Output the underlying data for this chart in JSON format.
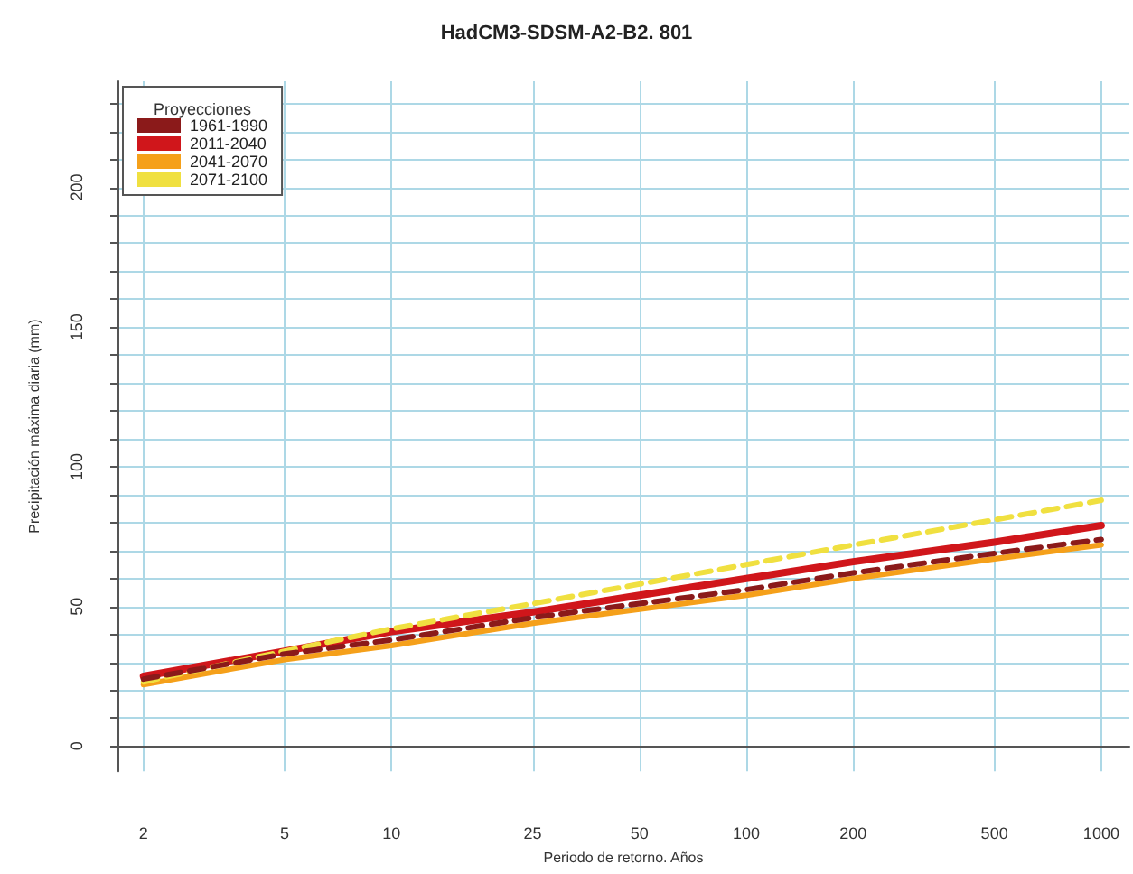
{
  "chart_data": {
    "type": "line",
    "title": "HadCM3-SDSM-A2-B2. 801",
    "xlabel": "Periodo de retorno. Años",
    "ylabel": "Precipitación máxima diaria (mm)",
    "legend_title": "Proyecciones",
    "x": [
      2,
      5,
      10,
      25,
      50,
      100,
      200,
      500,
      1000
    ],
    "series": [
      {
        "name": "1961-1990",
        "color": "#8b1a1a",
        "values": [
          24,
          33,
          38,
          46,
          51,
          56,
          62,
          69,
          74
        ],
        "line_style": "dashed"
      },
      {
        "name": "2011-2040",
        "color": "#d0161b",
        "values": [
          25,
          34,
          41,
          48,
          54,
          60,
          66,
          73,
          79
        ],
        "line_style": "solid"
      },
      {
        "name": "2041-2070",
        "color": "#f5a01a",
        "values": [
          22,
          31,
          36,
          44,
          49,
          54,
          60,
          67,
          72
        ],
        "line_style": "solid"
      },
      {
        "name": "2071-2100",
        "color": "#f0e040",
        "values": [
          23,
          34,
          42,
          51,
          58,
          65,
          72,
          81,
          88
        ],
        "line_style": "dashed"
      }
    ],
    "xlim": [
      1.69,
      1200
    ],
    "xticks": [
      2,
      5,
      10,
      25,
      50,
      100,
      200,
      500,
      1000
    ],
    "ylim": [
      -9,
      238
    ],
    "yticks": [
      0,
      {
        "value": 10,
        "label": null
      },
      {
        "value": 20,
        "label": null
      },
      {
        "value": 30,
        "label": null
      },
      {
        "value": 40,
        "label": null
      },
      50,
      {
        "value": 60,
        "label": null
      },
      {
        "value": 70,
        "label": null
      },
      {
        "value": 80,
        "label": null
      },
      {
        "value": 90,
        "label": null
      },
      100,
      {
        "value": 110,
        "label": null
      },
      {
        "value": 120,
        "label": null
      },
      {
        "value": 130,
        "label": null
      },
      {
        "value": 140,
        "label": null
      },
      150,
      {
        "value": 160,
        "label": null
      },
      {
        "value": 170,
        "label": null
      },
      {
        "value": 180,
        "label": null
      },
      {
        "value": 190,
        "label": null
      },
      200,
      {
        "value": 210,
        "label": null
      },
      {
        "value": 220,
        "label": null
      },
      {
        "value": 230,
        "label": null
      }
    ],
    "log": "x",
    "grid": true,
    "legend": "top left",
    "marker": "none"
  }
}
